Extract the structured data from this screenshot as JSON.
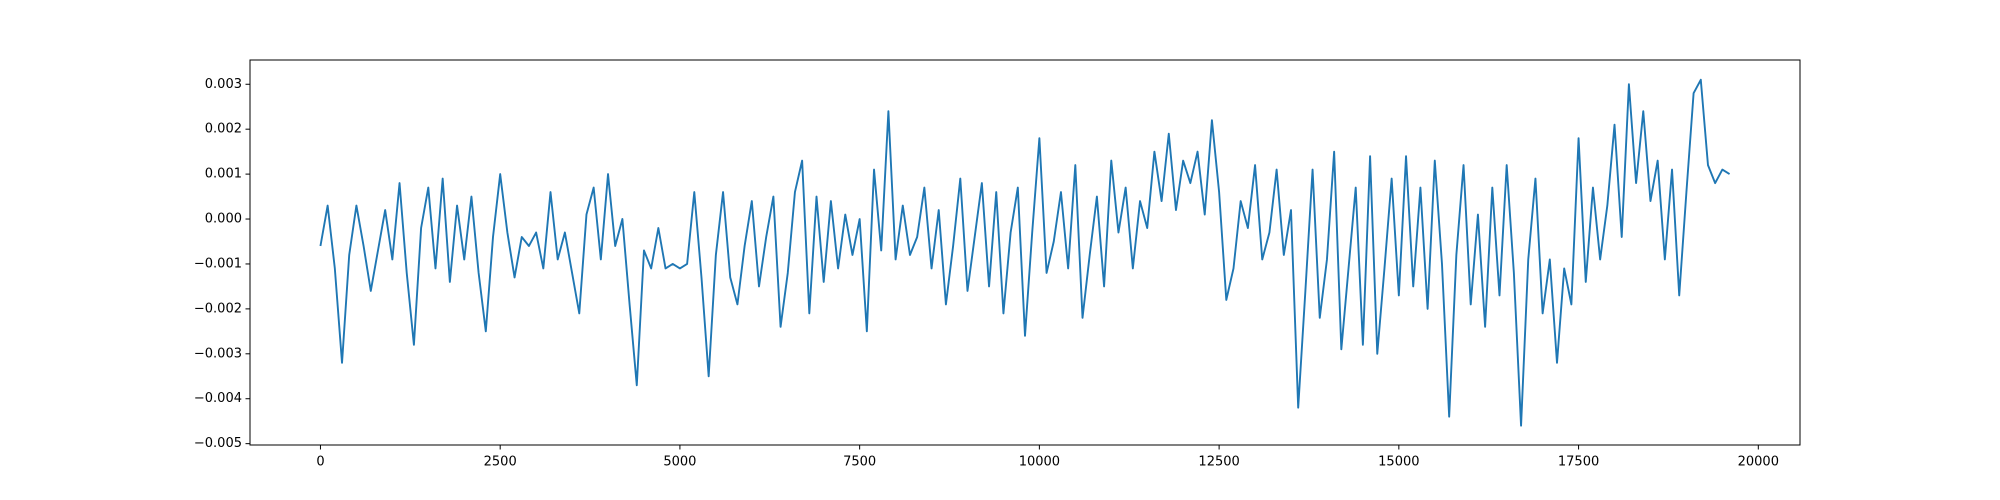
{
  "chart_data": {
    "type": "line",
    "x": [
      0,
      100,
      200,
      300,
      400,
      500,
      600,
      700,
      800,
      900,
      1000,
      1100,
      1200,
      1300,
      1400,
      1500,
      1600,
      1700,
      1800,
      1900,
      2000,
      2100,
      2200,
      2300,
      2400,
      2500,
      2600,
      2700,
      2800,
      2900,
      3000,
      3100,
      3200,
      3300,
      3400,
      3500,
      3600,
      3700,
      3800,
      3900,
      4000,
      4100,
      4200,
      4300,
      4400,
      4500,
      4600,
      4700,
      4800,
      4900,
      5000,
      5100,
      5200,
      5300,
      5400,
      5500,
      5600,
      5700,
      5800,
      5900,
      6000,
      6100,
      6200,
      6300,
      6400,
      6500,
      6600,
      6700,
      6800,
      6900,
      7000,
      7100,
      7200,
      7300,
      7400,
      7500,
      7600,
      7700,
      7800,
      7900,
      8000,
      8100,
      8200,
      8300,
      8400,
      8500,
      8600,
      8700,
      8800,
      8900,
      9000,
      9100,
      9200,
      9300,
      9400,
      9500,
      9600,
      9700,
      9800,
      9900,
      10000,
      10100,
      10200,
      10300,
      10400,
      10500,
      10600,
      10700,
      10800,
      10900,
      11000,
      11100,
      11200,
      11300,
      11400,
      11500,
      11600,
      11700,
      11800,
      11900,
      12000,
      12100,
      12200,
      12300,
      12400,
      12500,
      12600,
      12700,
      12800,
      12900,
      13000,
      13100,
      13200,
      13300,
      13400,
      13500,
      13600,
      13700,
      13800,
      13900,
      14000,
      14100,
      14200,
      14300,
      14400,
      14500,
      14600,
      14700,
      14800,
      14900,
      15000,
      15100,
      15200,
      15300,
      15400,
      15500,
      15600,
      15700,
      15800,
      15900,
      16000,
      16100,
      16200,
      16300,
      16400,
      16500,
      16600,
      16700,
      16800,
      16900,
      17000,
      17100,
      17200,
      17300,
      17400,
      17500,
      17600,
      17700,
      17800,
      17900,
      18000,
      18100,
      18200,
      18300,
      18400,
      18500,
      18600,
      18700,
      18800,
      18900,
      19000,
      19100,
      19200,
      19300,
      19400,
      19500,
      19600
    ],
    "series": [
      {
        "color": "#1f77b4",
        "values": [
          -0.0006,
          0.0003,
          -0.0011,
          -0.0032,
          -0.0008,
          0.0003,
          -0.0006,
          -0.0016,
          -0.0007,
          0.0002,
          -0.0009,
          0.0008,
          -0.0012,
          -0.0028,
          -0.0002,
          0.0007,
          -0.0011,
          0.0009,
          -0.0014,
          0.0003,
          -0.0009,
          0.0005,
          -0.0012,
          -0.0025,
          -0.0004,
          0.001,
          -0.0003,
          -0.0013,
          -0.0004,
          -0.0006,
          -0.0003,
          -0.0011,
          0.0006,
          -0.0009,
          -0.0003,
          -0.0012,
          -0.0021,
          0.0001,
          0.0007,
          -0.0009,
          0.001,
          -0.0006,
          0.0,
          -0.0019,
          -0.0037,
          -0.0007,
          -0.0011,
          -0.0002,
          -0.0011,
          -0.001,
          -0.0011,
          -0.001,
          0.0006,
          -0.0013,
          -0.0035,
          -0.0008,
          0.0006,
          -0.0013,
          -0.0019,
          -0.0006,
          0.0004,
          -0.0015,
          -0.0004,
          0.0005,
          -0.0024,
          -0.0012,
          0.0006,
          0.0013,
          -0.0021,
          0.0005,
          -0.0014,
          0.0004,
          -0.0011,
          0.0001,
          -0.0008,
          0.0,
          -0.0025,
          0.0011,
          -0.0007,
          0.0024,
          -0.0009,
          0.0003,
          -0.0008,
          -0.0004,
          0.0007,
          -0.0011,
          0.0002,
          -0.0019,
          -0.0006,
          0.0009,
          -0.0016,
          -0.0004,
          0.0008,
          -0.0015,
          0.0006,
          -0.0021,
          -0.0003,
          0.0007,
          -0.0026,
          -0.0003,
          0.0018,
          -0.0012,
          -0.0005,
          0.0006,
          -0.0011,
          0.0012,
          -0.0022,
          -0.0008,
          0.0005,
          -0.0015,
          0.0013,
          -0.0003,
          0.0007,
          -0.0011,
          0.0004,
          -0.0002,
          0.0015,
          0.0004,
          0.0019,
          0.0002,
          0.0013,
          0.0008,
          0.0015,
          0.0001,
          0.0022,
          0.0006,
          -0.0018,
          -0.0011,
          0.0004,
          -0.0002,
          0.0012,
          -0.0009,
          -0.0003,
          0.0011,
          -0.0008,
          0.0002,
          -0.0042,
          -0.0016,
          0.0011,
          -0.0022,
          -0.0009,
          0.0015,
          -0.0029,
          -0.0011,
          0.0007,
          -0.0028,
          0.0014,
          -0.003,
          -0.0011,
          0.0009,
          -0.0017,
          0.0014,
          -0.0015,
          0.0007,
          -0.002,
          0.0013,
          -0.001,
          -0.0044,
          -0.0008,
          0.0012,
          -0.0019,
          0.0001,
          -0.0024,
          0.0007,
          -0.0017,
          0.0012,
          -0.0012,
          -0.0046,
          -0.0009,
          0.0009,
          -0.0021,
          -0.0009,
          -0.0032,
          -0.0011,
          -0.0019,
          0.0018,
          -0.0014,
          0.0007,
          -0.0009,
          0.0003,
          0.0021,
          -0.0004,
          0.003,
          0.0008,
          0.0024,
          0.0004,
          0.0013,
          -0.0009,
          0.0011,
          -0.0017,
          0.0006,
          0.0028,
          0.0031,
          0.0012,
          0.0008,
          0.0011,
          0.001
        ]
      }
    ],
    "xlim": [
      -980,
      20580
    ],
    "xticks": [
      0,
      2500,
      5000,
      7500,
      10000,
      12500,
      15000,
      17500,
      20000
    ],
    "ylim": [
      -0.00503,
      0.00354
    ],
    "yticks": [
      {
        "value": -0.005,
        "label": "−0.005"
      },
      {
        "value": -0.004,
        "label": "−0.004"
      },
      {
        "value": -0.003,
        "label": "−0.003"
      },
      {
        "value": -0.002,
        "label": "−0.002"
      },
      {
        "value": -0.001,
        "label": "−0.001"
      },
      {
        "value": 0,
        "label": "0.000"
      },
      0.001,
      0.002,
      0.003
    ]
  }
}
